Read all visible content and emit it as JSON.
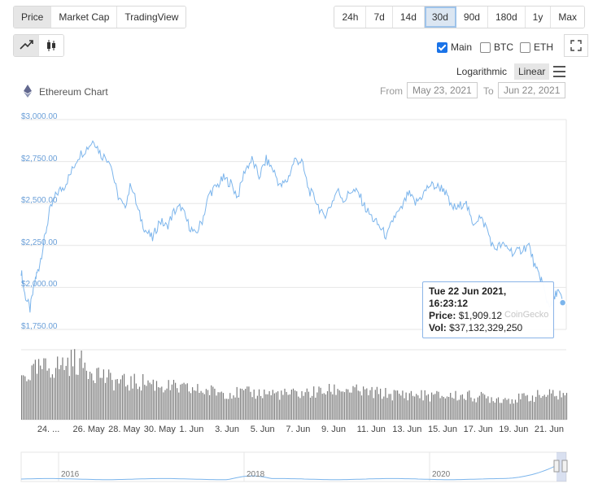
{
  "tabs": [
    {
      "label": "Price",
      "active": true
    },
    {
      "label": "Market Cap",
      "active": false
    },
    {
      "label": "TradingView",
      "active": false
    }
  ],
  "ranges": [
    {
      "label": "24h",
      "active": false
    },
    {
      "label": "7d",
      "active": false
    },
    {
      "label": "14d",
      "active": false
    },
    {
      "label": "30d",
      "active": true
    },
    {
      "label": "90d",
      "active": false
    },
    {
      "label": "180d",
      "active": false
    },
    {
      "label": "1y",
      "active": false
    },
    {
      "label": "Max",
      "active": false
    }
  ],
  "chart_type_icons": [
    "line-chart-icon",
    "candlestick-icon"
  ],
  "comparisons": [
    {
      "label": "Main",
      "checked": true
    },
    {
      "label": "BTC",
      "checked": false
    },
    {
      "label": "ETH",
      "checked": false
    }
  ],
  "scale": {
    "logarithmic": "Logarithmic",
    "linear": "Linear",
    "active": "Linear"
  },
  "chart_title": "Ethereum Chart",
  "date_range": {
    "from_label": "From",
    "from": "May 23, 2021",
    "to_label": "To",
    "to": "Jun 22, 2021"
  },
  "tooltip": {
    "date": "Tue 22 Jun 2021, 16:23:12",
    "price_label": "Price:",
    "price": "$1,909.12",
    "vol_label": "Vol:",
    "vol": "$37,132,329,250"
  },
  "watermark": "CoinGecko",
  "navigator_labels": [
    "2016",
    "2018",
    "2020"
  ],
  "colors": {
    "line": "#7cb5ec",
    "volume": "#7a7a7a",
    "accent": "#1a73e8",
    "tick": "#6a9fd8"
  },
  "chart_data": {
    "type": "line",
    "yticks": [
      "$3,000.00",
      "$2,750.00",
      "$2,500.00",
      "$2,250.00",
      "$2,000.00",
      "$1,750.00"
    ],
    "ytick_values": [
      3000,
      2750,
      2500,
      2250,
      2000,
      1750
    ],
    "ylim": [
      1750,
      3000
    ],
    "xticks": [
      "24. ...",
      "26. May",
      "28. May",
      "30. May",
      "1. Jun",
      "3. Jun",
      "5. Jun",
      "7. Jun",
      "9. Jun",
      "11. Jun",
      "13. Jun",
      "15. Jun",
      "17. Jun",
      "19. Jun",
      "21. Jun"
    ],
    "xtick_days": [
      24,
      26,
      28,
      30,
      32,
      34,
      36,
      38,
      40,
      42,
      44,
      46,
      48,
      50,
      52
    ],
    "xlim_days": [
      23,
      53.7
    ],
    "price_series": {
      "days": [
        23.0,
        23.2,
        23.5,
        23.8,
        24.0,
        24.3,
        24.6,
        25.0,
        25.4,
        25.8,
        26.2,
        26.7,
        27.1,
        27.5,
        28.0,
        28.4,
        28.8,
        29.2,
        29.6,
        30.0,
        30.4,
        30.8,
        31.2,
        31.6,
        32.0,
        32.4,
        32.8,
        33.2,
        33.6,
        34.0,
        34.4,
        34.8,
        35.2,
        35.6,
        36.0,
        36.4,
        36.8,
        37.2,
        37.6,
        38.0,
        38.4,
        38.8,
        39.2,
        39.6,
        40.0,
        40.4,
        40.8,
        41.2,
        41.6,
        42.0,
        42.4,
        42.8,
        43.2,
        43.6,
        44.0,
        44.4,
        44.8,
        45.2,
        45.6,
        46.0,
        46.4,
        46.8,
        47.2,
        47.6,
        48.0,
        48.4,
        48.8,
        49.2,
        49.6,
        50.0,
        50.4,
        50.8,
        51.2,
        51.6,
        52.0,
        52.3,
        52.6,
        52.9,
        53.2,
        53.5
      ],
      "values": [
        2100,
        1960,
        1870,
        2050,
        2120,
        2280,
        2450,
        2560,
        2600,
        2680,
        2780,
        2830,
        2880,
        2790,
        2760,
        2560,
        2470,
        2620,
        2450,
        2340,
        2290,
        2400,
        2360,
        2450,
        2480,
        2380,
        2310,
        2400,
        2560,
        2600,
        2650,
        2620,
        2540,
        2700,
        2760,
        2660,
        2760,
        2700,
        2600,
        2640,
        2760,
        2750,
        2580,
        2520,
        2420,
        2480,
        2580,
        2520,
        2580,
        2560,
        2470,
        2410,
        2360,
        2300,
        2420,
        2460,
        2560,
        2500,
        2550,
        2610,
        2600,
        2590,
        2480,
        2470,
        2520,
        2380,
        2420,
        2360,
        2230,
        2250,
        2240,
        2200,
        2230,
        2250,
        2100,
        2050,
        1920,
        1890,
        1990,
        1909
      ]
    },
    "volume_series": {
      "days": [
        23,
        24,
        25,
        26,
        27,
        28,
        29,
        30,
        31,
        32,
        33,
        34,
        35,
        36,
        37,
        38,
        39,
        40,
        41,
        42,
        43,
        44,
        45,
        46,
        47,
        48,
        49,
        50,
        51,
        52,
        53
      ],
      "values": [
        30,
        36,
        38,
        42,
        36,
        28,
        26,
        27,
        24,
        22,
        21,
        20,
        19,
        19,
        19,
        18,
        19,
        20,
        22,
        20,
        19,
        18,
        18,
        17,
        17,
        17,
        16,
        15,
        15,
        17,
        18
      ]
    }
  }
}
